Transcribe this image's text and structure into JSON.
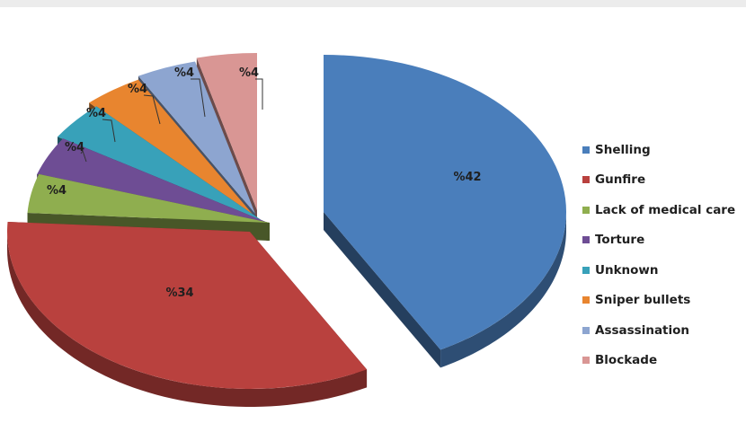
{
  "chart_data": {
    "type": "pie",
    "title": "",
    "categories": [
      "Shelling",
      "Gunfire",
      "Lack of medical care",
      "Torture",
      "Unknown",
      "Sniper bullets",
      "Assassination",
      "Blockade"
    ],
    "values": [
      42,
      34,
      4,
      4,
      4,
      4,
      4,
      4
    ],
    "data_labels": [
      "%42",
      "%34",
      "%4",
      "%4",
      "%4",
      "%4",
      "%4",
      "%4"
    ],
    "colors": [
      "#4a7ebb",
      "#b9413e",
      "#8fae4f",
      "#6e4d94",
      "#38a1b9",
      "#e8852f",
      "#8da5d0",
      "#d99694"
    ],
    "legend_position": "right",
    "style": "3d-exploded"
  }
}
